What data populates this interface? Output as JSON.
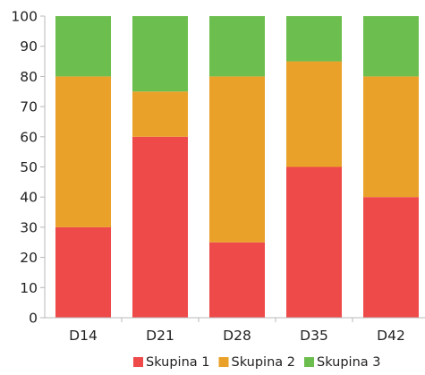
{
  "chart_data": {
    "type": "bar",
    "stacked": true,
    "title": "",
    "xlabel": "",
    "ylabel": "",
    "categories": [
      "D14",
      "D21",
      "D28",
      "D35",
      "D42"
    ],
    "ylim": [
      0,
      100
    ],
    "yticks": [
      0,
      10,
      20,
      30,
      40,
      50,
      60,
      70,
      80,
      90,
      100
    ],
    "grid": false,
    "legend_position": "bottom-right",
    "series": [
      {
        "name": "Skupina 1",
        "color": "#ef4a4a",
        "values": [
          30,
          60,
          25,
          50,
          40
        ]
      },
      {
        "name": "Skupina 2",
        "color": "#eaa12a",
        "values": [
          50,
          15,
          55,
          35,
          40
        ]
      },
      {
        "name": "Skupina 3",
        "color": "#6cbf4f",
        "values": [
          20,
          25,
          20,
          15,
          20
        ]
      }
    ]
  }
}
